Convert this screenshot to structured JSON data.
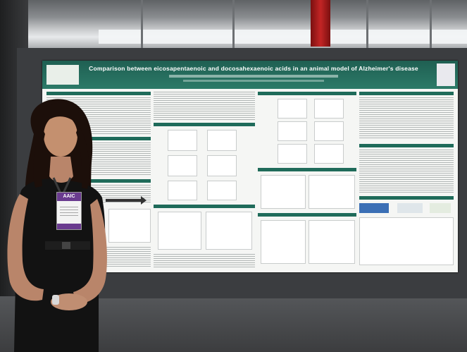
{
  "scene": {
    "colors": {
      "poster_header": "#2c7a68",
      "poster_background": "#f5f6f4",
      "board": "#3b3d40",
      "badge_accent": "#6a3b8f"
    }
  },
  "poster": {
    "title": "Comparison between eicosapentaenoic and docosahexaenoic acids in an animal model of Alzheimer's disease"
  },
  "badge": {
    "event_label": "AAIC"
  }
}
